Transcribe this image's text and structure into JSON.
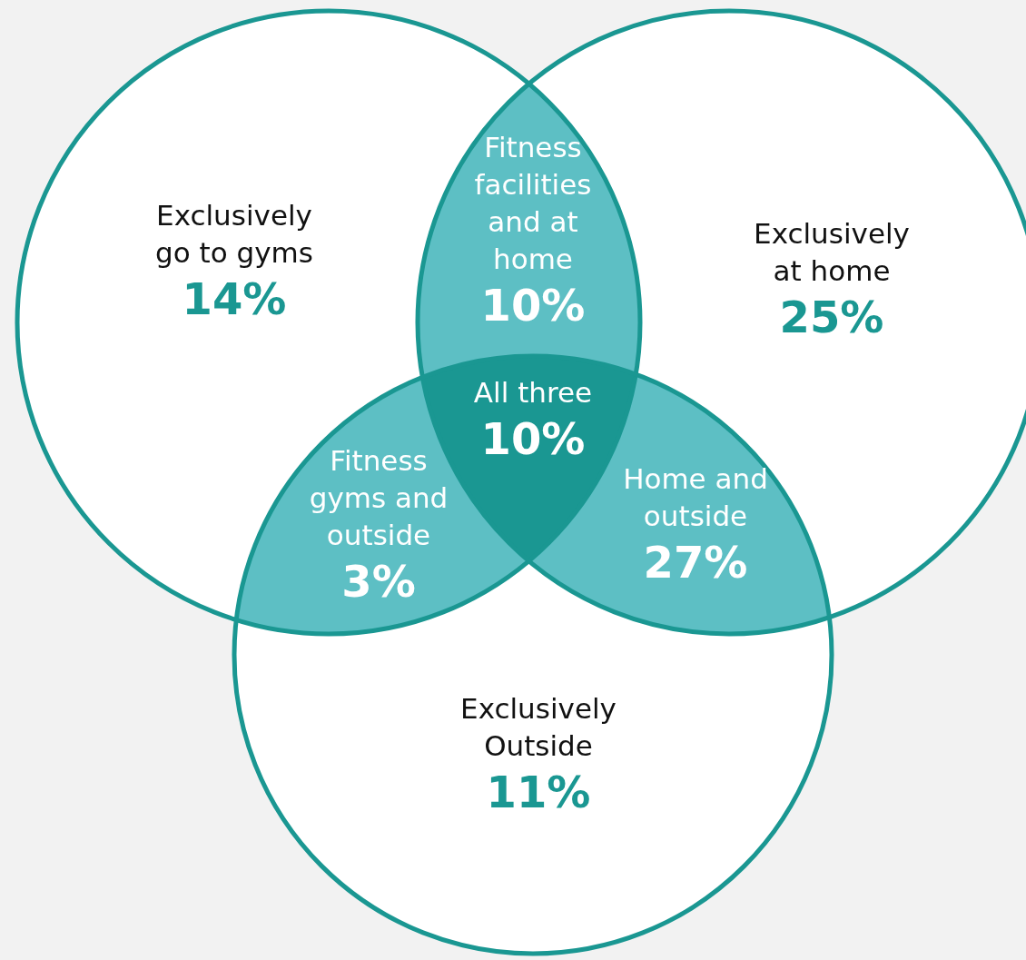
{
  "chart_data": {
    "type": "other",
    "categories": [
      "Exclusively go to gyms",
      "Fitness facilities and at home",
      "Exclusively at home",
      "Fitness gyms and outside",
      "All three",
      "Home and outside",
      "Exclusively Outside"
    ],
    "values": [
      14,
      10,
      25,
      3,
      10,
      27,
      11
    ],
    "value_labels": [
      "14%",
      "10%",
      "25%",
      "3%",
      "10%",
      "27%",
      "11%"
    ],
    "colors": [
      "#ffffff",
      "#5dbfc4",
      "#ffffff",
      "#5dbfc4",
      "#1a9792",
      "#5dbfc4",
      "#ffffff"
    ]
  }
}
